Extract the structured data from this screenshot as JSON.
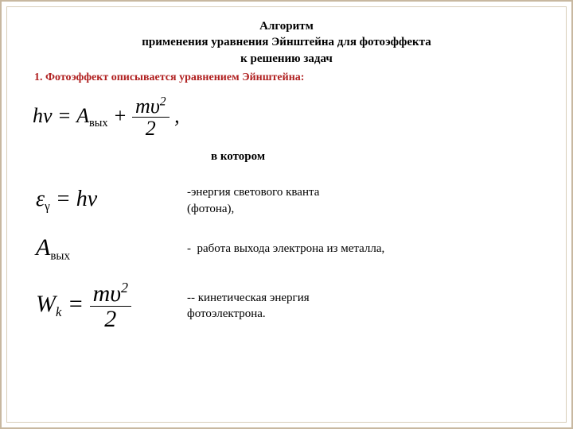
{
  "title_line1": "Алгоритм",
  "title_line2": "применения уравнения Эйнштейна для фотоэффекта",
  "title_line3": "к решению задач",
  "subhead": "1. Фотоэффект описывается уравнением Эйнштейна:",
  "in_which": "в котором",
  "def1_text_l1": "-энергия светового кванта",
  "def1_text_l2": "(фотона),",
  "def2_text": "-  работа выхода электрона из металла,",
  "def3_text_l1": "-- кинетическая энергия",
  "def3_text_l2": "фотоэлектрона.",
  "formulas": {
    "main_lhs": "hν",
    "A_sub": "вых",
    "epsilon_gamma": "ε",
    "gamma_sub": "γ",
    "h_nu_rhs": "hν",
    "A_label": "A",
    "W_label": "W",
    "k_sub": "k",
    "m_upsilon": "mυ",
    "two": "2"
  },
  "colors": {
    "accent": "#b02020",
    "text": "#000000",
    "border_outer": "#c8b8a0",
    "border_inner": "#d8cdb8",
    "background": "#ffffff"
  },
  "typography": {
    "title_fontsize": 15,
    "body_fontsize": 15,
    "formula_main_fontsize": 26,
    "formula_def_fontsize": 28
  }
}
